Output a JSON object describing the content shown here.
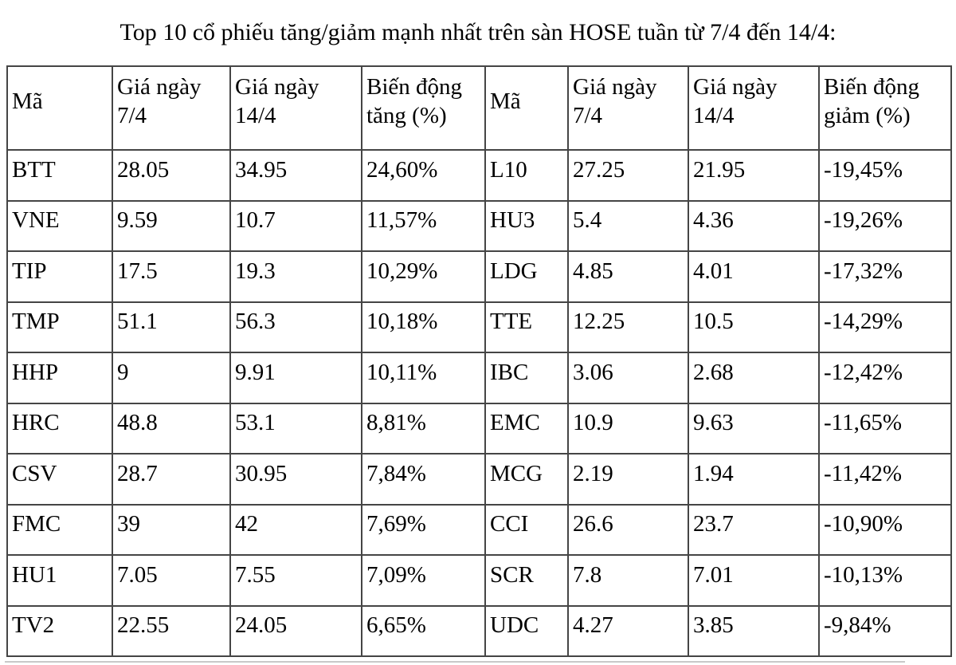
{
  "title": "Top 10 cổ phiếu tăng/giảm mạnh nhất trên sàn HOSE tuần từ 7/4 đến 14/4:",
  "table": {
    "columns": [
      "Mã",
      "Giá ngày 7/4",
      "Giá ngày 14/4",
      "Biến động tăng (%)",
      "Mã",
      "Giá ngày 7/4",
      "Giá ngày 14/4",
      "Biến động giảm (%)"
    ],
    "rows": [
      [
        "BTT",
        "28.05",
        "34.95",
        "24,60%",
        "L10",
        "27.25",
        "21.95",
        "-19,45%"
      ],
      [
        "VNE",
        "9.59",
        "10.7",
        "11,57%",
        "HU3",
        "5.4",
        "4.36",
        "-19,26%"
      ],
      [
        "TIP",
        "17.5",
        "19.3",
        "10,29%",
        "LDG",
        "4.85",
        "4.01",
        "-17,32%"
      ],
      [
        "TMP",
        "51.1",
        "56.3",
        "10,18%",
        "TTE",
        "12.25",
        "10.5",
        "-14,29%"
      ],
      [
        "HHP",
        "9",
        "9.91",
        "10,11%",
        "IBC",
        "3.06",
        "2.68",
        "-12,42%"
      ],
      [
        "HRC",
        "48.8",
        "53.1",
        "8,81%",
        "EMC",
        "10.9",
        "9.63",
        "-11,65%"
      ],
      [
        "CSV",
        "28.7",
        "30.95",
        "7,84%",
        "MCG",
        "2.19",
        "1.94",
        "-11,42%"
      ],
      [
        "FMC",
        "39",
        "42",
        "7,69%",
        "CCI",
        "26.6",
        "23.7",
        "-10,90%"
      ],
      [
        "HU1",
        "7.05",
        "7.55",
        "7,09%",
        "SCR",
        "7.8",
        "7.01",
        "-10,13%"
      ],
      [
        "TV2",
        "22.55",
        "24.05",
        "6,65%",
        "UDC",
        "4.27",
        "3.85",
        "-9,84%"
      ]
    ]
  },
  "chart_data": {
    "type": "table",
    "title": "Top 10 cổ phiếu tăng/giảm mạnh nhất trên sàn HOSE tuần từ 7/4 đến 14/4",
    "gainers": [
      {
        "code": "BTT",
        "price_7_4": 28.05,
        "price_14_4": 34.95,
        "change_pct": 24.6
      },
      {
        "code": "VNE",
        "price_7_4": 9.59,
        "price_14_4": 10.7,
        "change_pct": 11.57
      },
      {
        "code": "TIP",
        "price_7_4": 17.5,
        "price_14_4": 19.3,
        "change_pct": 10.29
      },
      {
        "code": "TMP",
        "price_7_4": 51.1,
        "price_14_4": 56.3,
        "change_pct": 10.18
      },
      {
        "code": "HHP",
        "price_7_4": 9,
        "price_14_4": 9.91,
        "change_pct": 10.11
      },
      {
        "code": "HRC",
        "price_7_4": 48.8,
        "price_14_4": 53.1,
        "change_pct": 8.81
      },
      {
        "code": "CSV",
        "price_7_4": 28.7,
        "price_14_4": 30.95,
        "change_pct": 7.84
      },
      {
        "code": "FMC",
        "price_7_4": 39,
        "price_14_4": 42,
        "change_pct": 7.69
      },
      {
        "code": "HU1",
        "price_7_4": 7.05,
        "price_14_4": 7.55,
        "change_pct": 7.09
      },
      {
        "code": "TV2",
        "price_7_4": 22.55,
        "price_14_4": 24.05,
        "change_pct": 6.65
      }
    ],
    "losers": [
      {
        "code": "L10",
        "price_7_4": 27.25,
        "price_14_4": 21.95,
        "change_pct": -19.45
      },
      {
        "code": "HU3",
        "price_7_4": 5.4,
        "price_14_4": 4.36,
        "change_pct": -19.26
      },
      {
        "code": "LDG",
        "price_7_4": 4.85,
        "price_14_4": 4.01,
        "change_pct": -17.32
      },
      {
        "code": "TTE",
        "price_7_4": 12.25,
        "price_14_4": 10.5,
        "change_pct": -14.29
      },
      {
        "code": "IBC",
        "price_7_4": 3.06,
        "price_14_4": 2.68,
        "change_pct": -12.42
      },
      {
        "code": "EMC",
        "price_7_4": 10.9,
        "price_14_4": 9.63,
        "change_pct": -11.65
      },
      {
        "code": "MCG",
        "price_7_4": 2.19,
        "price_14_4": 1.94,
        "change_pct": -11.42
      },
      {
        "code": "CCI",
        "price_7_4": 26.6,
        "price_14_4": 23.7,
        "change_pct": -10.9
      },
      {
        "code": "SCR",
        "price_7_4": 7.8,
        "price_14_4": 7.01,
        "change_pct": -10.13
      },
      {
        "code": "UDC",
        "price_7_4": 4.27,
        "price_14_4": 3.85,
        "change_pct": -9.84
      }
    ]
  }
}
